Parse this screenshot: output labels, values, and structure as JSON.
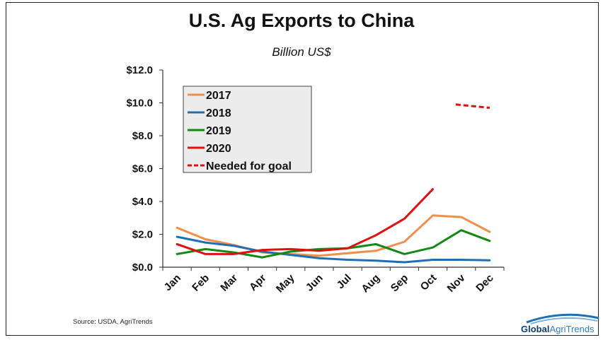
{
  "header": {
    "title": "U.S. Ag Exports to China",
    "subtitle": "Billion US$"
  },
  "footer": {
    "source": "Source:  USDA, AgriTrends",
    "logo_word1": "Global",
    "logo_word2": "AgriTrends"
  },
  "colors": {
    "s2017": "#ef8f4a",
    "s2018": "#1f6fb5",
    "s2019": "#128a12",
    "s2020": "#e01010",
    "goal": "#e01010"
  },
  "chart_data": {
    "type": "line",
    "title": "U.S. Ag Exports to China",
    "subtitle": "Billion US$",
    "categories": [
      "Jan",
      "Feb",
      "Mar",
      "Apr",
      "May",
      "Jun",
      "Jul",
      "Aug",
      "Sep",
      "Oct",
      "Nov",
      "Dec"
    ],
    "ylim": [
      0,
      12
    ],
    "yticks": [
      "$0.0",
      "$2.0",
      "$4.0",
      "$6.0",
      "$8.0",
      "$10.0",
      "$12.0"
    ],
    "grid": false,
    "legend": "top-left",
    "series": [
      {
        "name": "2017",
        "color": "#ef8f4a",
        "dashed": false,
        "values": [
          2.4,
          1.7,
          1.35,
          0.9,
          0.8,
          0.7,
          0.85,
          1.0,
          1.55,
          3.15,
          3.05,
          2.15
        ]
      },
      {
        "name": "2018",
        "color": "#1f6fb5",
        "dashed": false,
        "values": [
          1.85,
          1.5,
          1.3,
          0.95,
          0.75,
          0.55,
          0.45,
          0.4,
          0.3,
          0.45,
          0.45,
          0.42
        ]
      },
      {
        "name": "2019",
        "color": "#128a12",
        "dashed": false,
        "values": [
          0.8,
          1.1,
          0.9,
          0.6,
          0.95,
          1.1,
          1.15,
          1.4,
          0.8,
          1.2,
          2.25,
          1.6
        ]
      },
      {
        "name": "2020",
        "color": "#e01010",
        "dashed": false,
        "values": [
          1.4,
          0.8,
          0.8,
          1.05,
          1.1,
          1.0,
          1.15,
          1.95,
          2.95,
          4.75,
          null,
          null
        ]
      },
      {
        "name": "Needed for goal",
        "color": "#e01010",
        "dashed": true,
        "values": [
          null,
          null,
          null,
          null,
          null,
          null,
          null,
          null,
          null,
          null,
          9.9,
          9.7
        ]
      }
    ]
  }
}
